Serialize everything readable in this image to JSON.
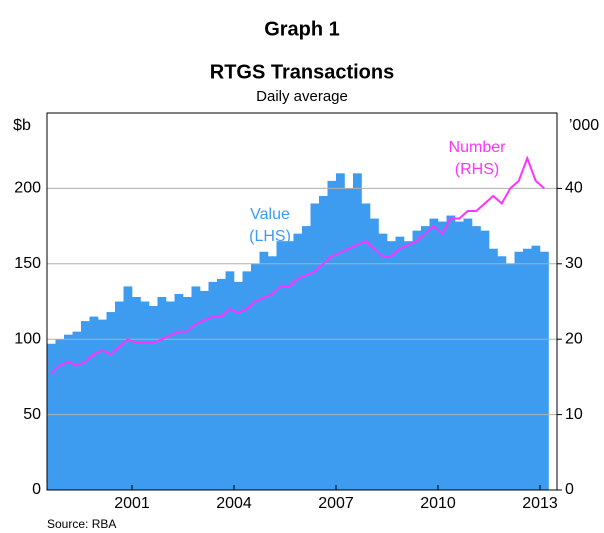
{
  "chart_data": {
    "type": "bar_line",
    "title": "Graph 1",
    "subtitle": "RTGS Transactions",
    "note": "Daily average",
    "y_label": "$b",
    "y2_label": "’000",
    "source": "Source: RBA",
    "annotations": [
      {
        "text": "Value",
        "sub": "(LHS)",
        "color": "#3d9cf0"
      },
      {
        "text": "Number",
        "sub": "(RHS)",
        "color": "#ff33ff"
      }
    ],
    "x": [
      1999,
      1999.25,
      1999.5,
      1999.75,
      2000,
      2000.25,
      2000.5,
      2000.75,
      2001,
      2001.25,
      2001.5,
      2001.75,
      2002,
      2002.25,
      2002.5,
      2002.75,
      2003,
      2003.25,
      2003.5,
      2003.75,
      2004,
      2004.25,
      2004.5,
      2004.75,
      2005,
      2005.25,
      2005.5,
      2005.75,
      2006,
      2006.25,
      2006.5,
      2006.75,
      2007,
      2007.25,
      2007.5,
      2007.75,
      2008,
      2008.25,
      2008.5,
      2008.75,
      2009,
      2009.25,
      2009.5,
      2009.75,
      2010,
      2010.25,
      2010.5,
      2010.75,
      2011,
      2011.25,
      2011.5,
      2011.75,
      2012,
      2012.25,
      2012.5,
      2012.75,
      2013,
      2013.25,
      2013.5
    ],
    "series": [
      {
        "name": "Value",
        "color": "#3d9cf0",
        "axis": "y",
        "values": [
          97,
          100,
          103,
          105,
          112,
          115,
          113,
          118,
          125,
          135,
          128,
          125,
          122,
          128,
          125,
          130,
          128,
          135,
          132,
          138,
          140,
          145,
          138,
          145,
          150,
          158,
          155,
          165,
          165,
          170,
          175,
          190,
          195,
          205,
          210,
          200,
          210,
          190,
          180,
          170,
          165,
          168,
          165,
          172,
          175,
          180,
          178,
          182,
          178,
          180,
          175,
          172,
          160,
          155,
          150,
          158,
          160,
          162,
          158
        ]
      },
      {
        "name": "Number",
        "color": "#ff33ff",
        "axis": "y2",
        "values": [
          15.5,
          16.5,
          17,
          16.5,
          17,
          18,
          18.5,
          18,
          19,
          20,
          19.5,
          19.5,
          19.5,
          20,
          20.5,
          21,
          21,
          22,
          22.5,
          23,
          23,
          24,
          23.5,
          24,
          25,
          25.5,
          26,
          27,
          27,
          28,
          28.5,
          29,
          30,
          31,
          31.5,
          32,
          32.5,
          33,
          32,
          31,
          31,
          32,
          32.5,
          33,
          34,
          35,
          34,
          36,
          36,
          37,
          37,
          38,
          39,
          38,
          40,
          41,
          44,
          41,
          40
        ]
      }
    ],
    "xlim": [
      1999,
      2014
    ],
    "xticks": [
      {
        "value": 2001.5,
        "label": "2001"
      },
      {
        "value": 2004.5,
        "label": "2004"
      },
      {
        "value": 2007.5,
        "label": "2007"
      },
      {
        "value": 2010.5,
        "label": "2010"
      },
      {
        "value": 2013.5,
        "label": "2013"
      }
    ],
    "ylim": [
      0,
      250
    ],
    "yticks": [
      0,
      50,
      100,
      150,
      200
    ],
    "y2lim": [
      0,
      50
    ],
    "y2ticks": [
      0,
      10,
      20,
      30,
      40
    ],
    "grid": true
  }
}
